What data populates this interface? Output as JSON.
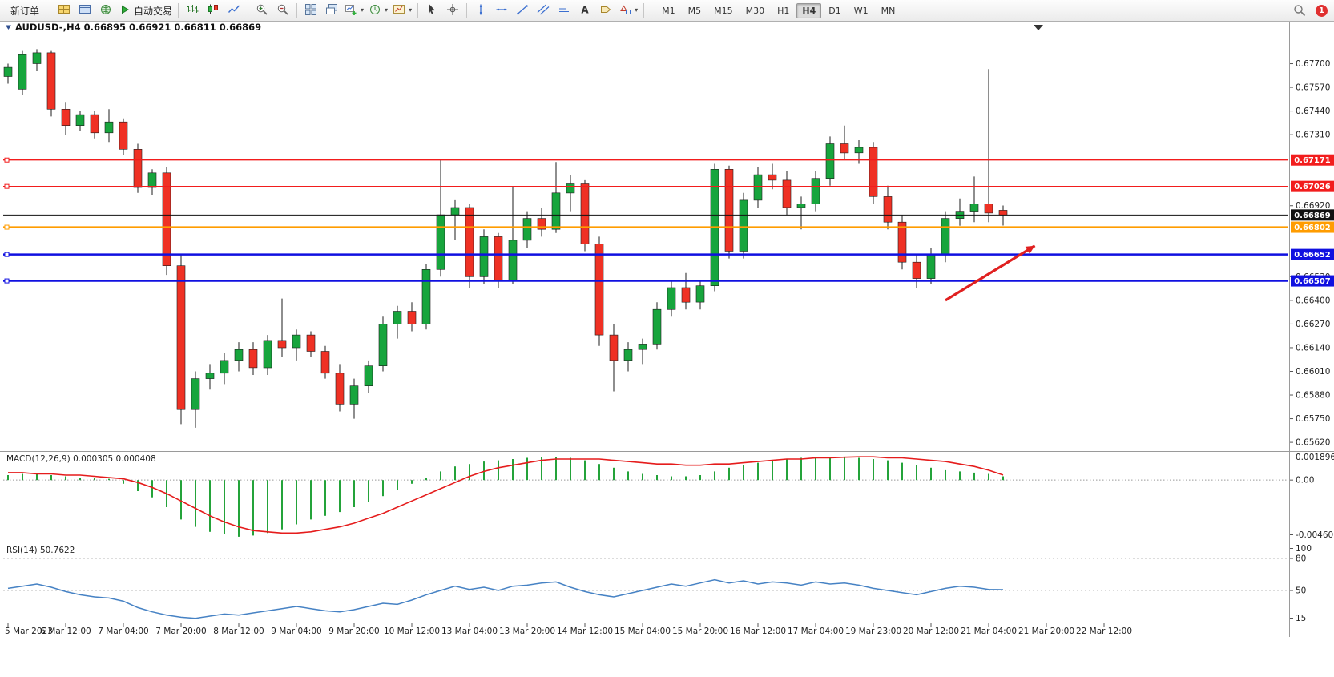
{
  "toolbar": {
    "new_order_label": "新订单",
    "autotrading_label": "自动交易",
    "notification_count": "1",
    "timeframes": [
      "M1",
      "M5",
      "M15",
      "M30",
      "H1",
      "H4",
      "D1",
      "W1",
      "MN"
    ],
    "active_timeframe": "H4",
    "items": [
      {
        "type": "text",
        "name": "new-order-button",
        "bind": "toolbar.new_order_label"
      },
      {
        "type": "sep"
      },
      {
        "type": "icon",
        "name": "charts-tile-icon",
        "icon": "tiles"
      },
      {
        "type": "icon",
        "name": "market-watch-icon",
        "icon": "mwatch"
      },
      {
        "type": "icon",
        "name": "navigator-icon",
        "icon": "navigator"
      },
      {
        "type": "icon",
        "name": "autotrading-button",
        "icon": "play",
        "bind": "toolbar.autotrading_label"
      },
      {
        "type": "sep"
      },
      {
        "type": "icon",
        "name": "bar-chart-icon",
        "icon": "bars"
      },
      {
        "type": "icon",
        "name": "candlestick-chart-icon",
        "icon": "candles"
      },
      {
        "type": "icon",
        "name": "line-chart-icon",
        "icon": "linech"
      },
      {
        "type": "sep"
      },
      {
        "type": "icon",
        "name": "zoom-in-icon",
        "icon": "zoomin"
      },
      {
        "type": "icon",
        "name": "zoom-out-icon",
        "icon": "zoomout"
      },
      {
        "type": "sep"
      },
      {
        "type": "icon",
        "name": "tile-windows-icon",
        "icon": "tilewin"
      },
      {
        "type": "icon",
        "name": "cascade-windows-icon",
        "icon": "cascwin"
      },
      {
        "type": "icon",
        "name": "new-chart-icon",
        "icon": "newchart",
        "caret": true
      },
      {
        "type": "icon",
        "name": "periods-icon",
        "icon": "clock",
        "caret": true
      },
      {
        "type": "icon",
        "name": "templates-icon",
        "icon": "template",
        "caret": true
      },
      {
        "type": "sep"
      },
      {
        "type": "icon",
        "name": "cursor-icon",
        "icon": "cursor"
      },
      {
        "type": "icon",
        "name": "crosshair-icon",
        "icon": "crosshair"
      },
      {
        "type": "sep"
      },
      {
        "type": "icon",
        "name": "vertical-line-icon",
        "icon": "vline"
      },
      {
        "type": "icon",
        "name": "horizontal-line-icon",
        "icon": "hline"
      },
      {
        "type": "icon",
        "name": "trendline-icon",
        "icon": "trend"
      },
      {
        "type": "icon",
        "name": "channel-icon",
        "icon": "channel"
      },
      {
        "type": "icon",
        "name": "fibonacci-icon",
        "icon": "fibo"
      },
      {
        "type": "icon",
        "name": "text-tool-icon",
        "icon": "textA"
      },
      {
        "type": "icon",
        "name": "label-tool-icon",
        "icon": "labeltool"
      },
      {
        "type": "icon",
        "name": "shapes-icon",
        "icon": "shapes",
        "caret": true
      },
      {
        "type": "sep"
      }
    ]
  },
  "chart_data": [
    {
      "type": "candlestick",
      "title": "AUDUSD-,H4 0.66895 0.66921 0.66811 0.66869",
      "symbol": "AUDUSD-",
      "period": "H4",
      "ohlc_current": {
        "open": 0.66895,
        "high": 0.66921,
        "low": 0.66811,
        "close": 0.66869
      },
      "ylim": [
        0.65572,
        0.67874
      ],
      "y_ticks": [
        "0.67700",
        "0.67570",
        "0.67440",
        "0.67310",
        "0.66920",
        "0.66530",
        "0.66400",
        "0.66270",
        "0.66140",
        "0.66010",
        "0.65880",
        "0.65750",
        "0.65620"
      ],
      "x_labels": [
        "5 Mar 2023",
        "6 Mar 12:00",
        "7 Mar 04:00",
        "7 Mar 20:00",
        "8 Mar 12:00",
        "9 Mar 04:00",
        "9 Mar 20:00",
        "10 Mar 12:00",
        "13 Mar 04:00",
        "13 Mar 20:00",
        "14 Mar 12:00",
        "15 Mar 04:00",
        "15 Mar 20:00",
        "16 Mar 12:00",
        "17 Mar 04:00",
        "19 Mar 23:00",
        "20 Mar 12:00",
        "21 Mar 04:00",
        "21 Mar 20:00",
        "22 Mar 12:00"
      ],
      "x_label_step_bars": 4,
      "colors": {
        "up": "#17a53d",
        "down": "#ef3124",
        "wick": "#1d1d1d"
      },
      "levels": [
        {
          "price": 0.67171,
          "label": "0.67171",
          "color": "#f21d1d",
          "width": 1.4
        },
        {
          "price": 0.67026,
          "label": "0.67026",
          "color": "#f21d1d",
          "width": 1.4
        },
        {
          "price": 0.66869,
          "label": "0.66869",
          "color": "#111111",
          "width": 1,
          "current": true
        },
        {
          "price": 0.66802,
          "label": "0.66802",
          "color": "#ff9c00",
          "width": 2.4
        },
        {
          "price": 0.66652,
          "label": "0.66652",
          "color": "#1010e0",
          "width": 2.4
        },
        {
          "price": 0.66507,
          "label": "0.66507",
          "color": "#1010e0",
          "width": 2.4
        }
      ],
      "annotations": [
        {
          "type": "arrow",
          "color": "#e02020",
          "from": {
            "bar": 65,
            "price": 0.664
          },
          "to": {
            "bar": 71.2,
            "price": 0.667
          }
        }
      ],
      "candles": [
        [
          0.6763,
          0.677,
          0.6759,
          0.6768
        ],
        [
          0.6756,
          0.6777,
          0.6753,
          0.6775
        ],
        [
          0.677,
          0.6778,
          0.6766,
          0.6776
        ],
        [
          0.6776,
          0.6777,
          0.6741,
          0.6745
        ],
        [
          0.6745,
          0.6749,
          0.6731,
          0.6736
        ],
        [
          0.6736,
          0.6744,
          0.6733,
          0.6742
        ],
        [
          0.6742,
          0.6744,
          0.6729,
          0.6732
        ],
        [
          0.6732,
          0.6745,
          0.6727,
          0.6738
        ],
        [
          0.6738,
          0.674,
          0.672,
          0.6723
        ],
        [
          0.6723,
          0.6726,
          0.6699,
          0.6702
        ],
        [
          0.6702,
          0.6712,
          0.6698,
          0.671
        ],
        [
          0.671,
          0.6713,
          0.6654,
          0.6659
        ],
        [
          0.6659,
          0.6665,
          0.6572,
          0.658
        ],
        [
          0.658,
          0.6601,
          0.657,
          0.6597
        ],
        [
          0.6597,
          0.6605,
          0.6591,
          0.66
        ],
        [
          0.66,
          0.6611,
          0.6594,
          0.6607
        ],
        [
          0.6607,
          0.6617,
          0.6601,
          0.6613
        ],
        [
          0.6613,
          0.6617,
          0.6599,
          0.6603
        ],
        [
          0.6603,
          0.6621,
          0.6599,
          0.6618
        ],
        [
          0.6618,
          0.6641,
          0.6609,
          0.6614
        ],
        [
          0.6614,
          0.6624,
          0.6607,
          0.6621
        ],
        [
          0.6621,
          0.6623,
          0.6609,
          0.6612
        ],
        [
          0.6612,
          0.6615,
          0.6597,
          0.66
        ],
        [
          0.66,
          0.6605,
          0.6579,
          0.6583
        ],
        [
          0.6583,
          0.6597,
          0.6575,
          0.6593
        ],
        [
          0.6593,
          0.6607,
          0.6589,
          0.6604
        ],
        [
          0.6604,
          0.6631,
          0.6601,
          0.6627
        ],
        [
          0.6627,
          0.6637,
          0.6619,
          0.6634
        ],
        [
          0.6634,
          0.6639,
          0.6623,
          0.6627
        ],
        [
          0.6627,
          0.666,
          0.6624,
          0.6657
        ],
        [
          0.6657,
          0.6717,
          0.6653,
          0.6687
        ],
        [
          0.6687,
          0.6695,
          0.6673,
          0.6691
        ],
        [
          0.6691,
          0.6693,
          0.6647,
          0.6653
        ],
        [
          0.6653,
          0.6679,
          0.6649,
          0.6675
        ],
        [
          0.6675,
          0.6677,
          0.6647,
          0.6651
        ],
        [
          0.6651,
          0.6702,
          0.6649,
          0.6673
        ],
        [
          0.6673,
          0.6689,
          0.6669,
          0.6685
        ],
        [
          0.6685,
          0.6691,
          0.6675,
          0.6679
        ],
        [
          0.6679,
          0.6716,
          0.6677,
          0.6699
        ],
        [
          0.6699,
          0.6709,
          0.6689,
          0.6704
        ],
        [
          0.6704,
          0.6706,
          0.6667,
          0.6671
        ],
        [
          0.6671,
          0.6675,
          0.6615,
          0.6621
        ],
        [
          0.6621,
          0.6627,
          0.659,
          0.6607
        ],
        [
          0.6607,
          0.6617,
          0.6601,
          0.6613
        ],
        [
          0.6613,
          0.6619,
          0.6605,
          0.6616
        ],
        [
          0.6616,
          0.6639,
          0.6613,
          0.6635
        ],
        [
          0.6635,
          0.6651,
          0.6631,
          0.6647
        ],
        [
          0.6647,
          0.6655,
          0.6635,
          0.6639
        ],
        [
          0.6639,
          0.6651,
          0.6635,
          0.6648
        ],
        [
          0.6648,
          0.6715,
          0.6645,
          0.6712
        ],
        [
          0.6712,
          0.6714,
          0.6663,
          0.6667
        ],
        [
          0.6667,
          0.6699,
          0.6663,
          0.6695
        ],
        [
          0.6695,
          0.6713,
          0.6691,
          0.6709
        ],
        [
          0.6709,
          0.6715,
          0.6701,
          0.6706
        ],
        [
          0.6706,
          0.6711,
          0.6687,
          0.6691
        ],
        [
          0.6691,
          0.6697,
          0.6679,
          0.6693
        ],
        [
          0.6693,
          0.6711,
          0.6689,
          0.6707
        ],
        [
          0.6707,
          0.673,
          0.6703,
          0.6726
        ],
        [
          0.6726,
          0.6736,
          0.6717,
          0.6721
        ],
        [
          0.6721,
          0.6728,
          0.6715,
          0.6724
        ],
        [
          0.6724,
          0.6727,
          0.6693,
          0.6697
        ],
        [
          0.6697,
          0.6703,
          0.6679,
          0.6683
        ],
        [
          0.6683,
          0.6687,
          0.6657,
          0.6661
        ],
        [
          0.6661,
          0.6665,
          0.6647,
          0.6652
        ],
        [
          0.6652,
          0.6669,
          0.6649,
          0.6665
        ],
        [
          0.6665,
          0.6689,
          0.6661,
          0.6685
        ],
        [
          0.6685,
          0.6696,
          0.6681,
          0.6689
        ],
        [
          0.6689,
          0.6708,
          0.6683,
          0.6693
        ],
        [
          0.6693,
          0.6767,
          0.6683,
          0.6688
        ],
        [
          0.66895,
          0.66921,
          0.66811,
          0.66869
        ]
      ]
    },
    {
      "type": "bar",
      "subtype": "macd",
      "title": "MACD(12,26,9) 0.000305 0.000408",
      "indicator": "MACD(12,26,9)",
      "current_values": [
        0.000305,
        0.000408
      ],
      "scale": {
        "max": 0.001896,
        "min": -0.004606
      },
      "scale_labels": [
        "0.001896",
        "0.00",
        "-0.004606"
      ],
      "colors": {
        "histogram": "#24a33a",
        "signal": "#e51c1c"
      },
      "histogram": [
        0.0004,
        0.0005,
        0.0005,
        0.0004,
        0.0003,
        0.0002,
        0.0002,
        0.0001,
        -0.0003,
        -0.0009,
        -0.0014,
        -0.0022,
        -0.0032,
        -0.0038,
        -0.0042,
        -0.0044,
        -0.0046,
        -0.0045,
        -0.0043,
        -0.004,
        -0.0036,
        -0.0032,
        -0.0029,
        -0.0026,
        -0.0022,
        -0.0018,
        -0.0013,
        -0.0008,
        -0.0003,
        0.0002,
        0.0007,
        0.0011,
        0.0013,
        0.0015,
        0.0016,
        0.0017,
        0.0018,
        0.00189,
        0.00189,
        0.0018,
        0.0016,
        0.0013,
        0.001,
        0.0007,
        0.0005,
        0.0004,
        0.0003,
        0.0003,
        0.0004,
        0.0007,
        0.001,
        0.0012,
        0.0014,
        0.0016,
        0.0017,
        0.0018,
        0.00189,
        0.00189,
        0.0018,
        0.0018,
        0.0017,
        0.0016,
        0.0014,
        0.0012,
        0.001,
        0.0008,
        0.0007,
        0.0006,
        0.0005,
        0.000305
      ],
      "signal": [
        0.0006,
        0.0006,
        0.0005,
        0.0005,
        0.0004,
        0.0004,
        0.0003,
        0.0002,
        0.0001,
        -0.0002,
        -0.0006,
        -0.0011,
        -0.0017,
        -0.0023,
        -0.0029,
        -0.0034,
        -0.0038,
        -0.0041,
        -0.0042,
        -0.0043,
        -0.0043,
        -0.0042,
        -0.004,
        -0.0038,
        -0.0035,
        -0.0031,
        -0.0027,
        -0.0022,
        -0.0017,
        -0.0012,
        -0.0007,
        -0.0002,
        0.0003,
        0.0007,
        0.001,
        0.0012,
        0.0014,
        0.0016,
        0.0017,
        0.0017,
        0.0017,
        0.0017,
        0.0016,
        0.0015,
        0.0014,
        0.0013,
        0.0013,
        0.0012,
        0.0012,
        0.0013,
        0.0013,
        0.0014,
        0.0015,
        0.0016,
        0.0017,
        0.0017,
        0.0018,
        0.0018,
        0.00185,
        0.00188,
        0.00188,
        0.0018,
        0.0018,
        0.0017,
        0.0016,
        0.0015,
        0.0013,
        0.0011,
        0.0008,
        0.000408
      ]
    },
    {
      "type": "line",
      "subtype": "rsi",
      "title": "RSI(14) 50.7622",
      "indicator": "RSI(14)",
      "value": 50.7622,
      "levels": [
        80,
        50
      ],
      "scale_labels": [
        "100",
        "80",
        "50",
        "15"
      ],
      "color": "#4682c4",
      "series": [
        52,
        54,
        56,
        53,
        49,
        46,
        44,
        43,
        40,
        34,
        30,
        27,
        25,
        24,
        26,
        28,
        27,
        29,
        31,
        33,
        35,
        33,
        31,
        30,
        32,
        35,
        38,
        37,
        41,
        46,
        50,
        54,
        51,
        53,
        50,
        54,
        55,
        57,
        58,
        53,
        49,
        46,
        44,
        47,
        50,
        53,
        56,
        54,
        57,
        60,
        57,
        59,
        56,
        58,
        57,
        55,
        58,
        56,
        57,
        55,
        52,
        50,
        48,
        46,
        49,
        52,
        54,
        53,
        51,
        50.76
      ]
    }
  ]
}
